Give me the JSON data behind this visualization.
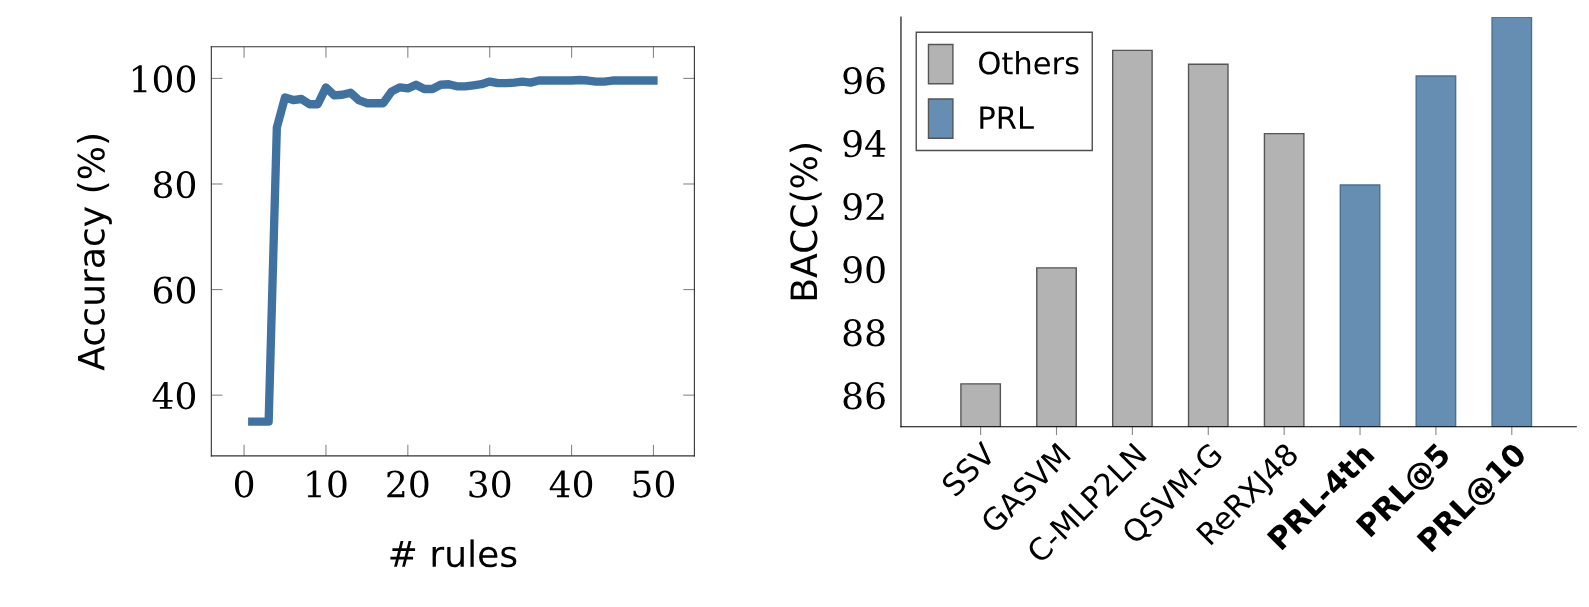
{
  "chart_data": [
    {
      "type": "line",
      "xlabel": "# rules",
      "ylabel": "Accuracy (%)",
      "x": [
        1,
        2,
        3,
        4,
        5,
        6,
        7,
        8,
        9,
        10,
        11,
        12,
        13,
        14,
        15,
        16,
        17,
        18,
        19,
        20,
        21,
        22,
        23,
        24,
        25,
        26,
        27,
        28,
        29,
        30,
        31,
        32,
        33,
        34,
        35,
        36,
        37,
        38,
        39,
        40,
        41,
        42,
        43,
        44,
        45,
        46,
        47,
        48,
        49,
        50
      ],
      "series": [
        {
          "color": "#3f72a0",
          "values": [
            35,
            35,
            35,
            90.7,
            96.4,
            95.9,
            96.1,
            95.1,
            95.1,
            98.3,
            96.8,
            96.9,
            97.3,
            95.9,
            95.3,
            95.3,
            95.3,
            97.5,
            98.3,
            98.1,
            98.8,
            98.0,
            98.0,
            98.8,
            98.9,
            98.5,
            98.5,
            98.7,
            98.9,
            99.4,
            99.1,
            99.1,
            99.2,
            99.4,
            99.2,
            99.6,
            99.6,
            99.6,
            99.6,
            99.6,
            99.7,
            99.6,
            99.4,
            99.4,
            99.6,
            99.6,
            99.6,
            99.6,
            99.6,
            99.6
          ]
        }
      ],
      "xlim": [
        -4,
        55
      ],
      "ylim": [
        28.5,
        106
      ],
      "xticks": [
        0,
        10,
        20,
        30,
        40,
        50
      ],
      "yticks": [
        40,
        60,
        80,
        100
      ],
      "grid": false,
      "marker": "none",
      "line_style": "solid"
    },
    {
      "type": "bar",
      "ylabel": "BACC(%)",
      "categories": [
        "SSV",
        "GASVM",
        "C-MLP2LN",
        "QSVM-G",
        "ReRXJ48",
        "PRL-4th",
        "PRL@5",
        "PRL@10"
      ],
      "series": [
        {
          "name": "Others",
          "color": "#b3b3b3",
          "values": [
            86.36,
            90.04,
            96.94,
            96.5,
            94.3,
            null,
            null,
            null
          ]
        },
        {
          "name": "PRL",
          "color": "#668eb3",
          "values": [
            null,
            null,
            null,
            null,
            null,
            92.67,
            96.13,
            98.0
          ]
        }
      ],
      "ylim": [
        85,
        98
      ],
      "yticks": [
        86,
        88,
        90,
        92,
        94,
        96
      ],
      "grid": false,
      "legend": "top left"
    }
  ]
}
